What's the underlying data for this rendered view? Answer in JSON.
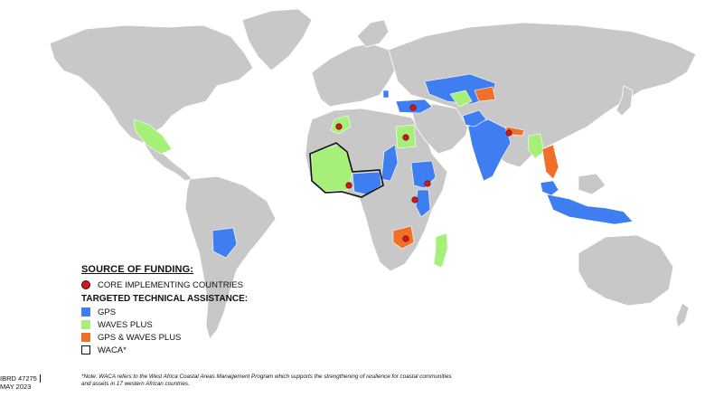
{
  "colors": {
    "land": "#c8c8c8",
    "gps": "#3f7ef0",
    "waves_plus": "#a6ef78",
    "gps_waves_plus": "#f0702a",
    "core": "#d4181c"
  },
  "legend": {
    "title": "SOURCE OF FUNDING:",
    "core_label": "CORE IMPLEMENTING COUNTRIES",
    "ta_heading": "TARGETED TECHNICAL ASSISTANCE:",
    "gps_label": "GPS",
    "waves_label": "WAVES PLUS",
    "both_label": "GPS & WAVES PLUS",
    "waca_label": "WACA*"
  },
  "note": "*Note: WACA refers to the West Africa Coastal Areas Management Program which supports the strengthening of resilience for coastal communities and assets in 17 western African countries.",
  "map_id": {
    "code": "IBRD 47275",
    "date": "MAY 2023"
  }
}
